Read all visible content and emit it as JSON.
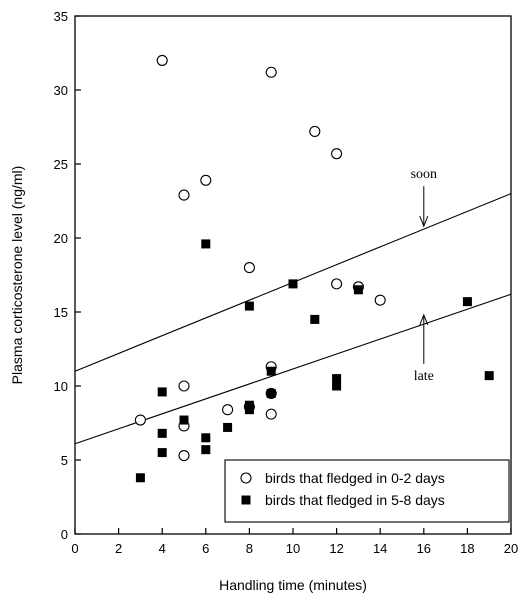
{
  "chart_data": {
    "type": "scatter",
    "title": "",
    "xlabel": "Handling time (minutes)",
    "ylabel": "Plasma corticosterone level (ng/ml)",
    "xlim": [
      0,
      20
    ],
    "ylim": [
      0,
      35
    ],
    "xticks": [
      0,
      2,
      4,
      6,
      8,
      10,
      12,
      14,
      16,
      18,
      20
    ],
    "yticks": [
      0,
      5,
      10,
      15,
      20,
      25,
      30,
      35
    ],
    "grid": false,
    "legend_position": "bottom-right",
    "series": [
      {
        "name": "birds that fledged in 0-2 days",
        "marker": "open-circle",
        "points": [
          [
            3,
            7.7
          ],
          [
            4,
            32.0
          ],
          [
            5,
            22.9
          ],
          [
            5,
            10.0
          ],
          [
            5,
            7.3
          ],
          [
            5,
            5.3
          ],
          [
            6,
            23.9
          ],
          [
            7,
            8.4
          ],
          [
            8,
            18.0
          ],
          [
            8,
            8.6
          ],
          [
            9,
            31.2
          ],
          [
            9,
            11.3
          ],
          [
            9,
            9.5
          ],
          [
            9,
            8.1
          ],
          [
            11,
            27.2
          ],
          [
            12,
            25.7
          ],
          [
            12,
            16.9
          ],
          [
            13,
            16.7
          ],
          [
            14,
            15.8
          ]
        ]
      },
      {
        "name": "birds that fledged in 5-8 days",
        "marker": "filled-square",
        "points": [
          [
            3,
            3.8
          ],
          [
            4,
            9.6
          ],
          [
            4,
            6.8
          ],
          [
            4,
            5.5
          ],
          [
            5,
            7.7
          ],
          [
            6,
            19.6
          ],
          [
            6,
            6.5
          ],
          [
            6,
            5.7
          ],
          [
            7,
            7.2
          ],
          [
            8,
            15.4
          ],
          [
            8,
            8.7
          ],
          [
            8,
            8.4
          ],
          [
            9,
            11.0
          ],
          [
            9,
            9.5
          ],
          [
            10,
            16.9
          ],
          [
            11,
            14.5
          ],
          [
            12,
            10.5
          ],
          [
            12,
            10.0
          ],
          [
            13,
            16.5
          ],
          [
            18,
            15.7
          ],
          [
            19,
            10.7
          ]
        ]
      }
    ],
    "lines": [
      {
        "label": "soon",
        "x": [
          0,
          20
        ],
        "y": [
          11.0,
          23.0
        ]
      },
      {
        "label": "late",
        "x": [
          0,
          20
        ],
        "y": [
          6.1,
          16.2
        ]
      }
    ],
    "annotations": [
      {
        "text": "soon",
        "arrow_x": 16,
        "arrow_y_from": 23.5,
        "arrow_y_to": 20.8
      },
      {
        "text": "late",
        "arrow_x": 16,
        "arrow_y_from": 11.5,
        "arrow_y_to": 14.8
      }
    ]
  }
}
